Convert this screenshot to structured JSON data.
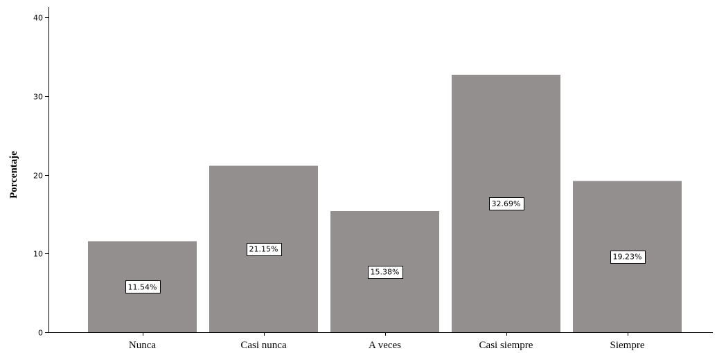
{
  "chart_data": {
    "type": "bar",
    "categories": [
      "Nunca",
      "Casi nunca",
      "A veces",
      "Casi siempre",
      "Siempre"
    ],
    "values": [
      11.54,
      21.15,
      15.38,
      32.69,
      19.23
    ],
    "data_labels": [
      "11.54%",
      "21.15%",
      "15.38%",
      "32.69%",
      "19.23%"
    ],
    "title": "",
    "xlabel": "",
    "ylabel": "Porcentaje",
    "ylim": [
      0,
      40
    ],
    "yticks": [
      0,
      10,
      20,
      30,
      40
    ],
    "ytick_labels": [
      "0",
      "10",
      "20",
      "30",
      "40"
    ],
    "grid": false,
    "legend": "none",
    "bar_color": "#938f8e",
    "axis_color": "#000000"
  }
}
